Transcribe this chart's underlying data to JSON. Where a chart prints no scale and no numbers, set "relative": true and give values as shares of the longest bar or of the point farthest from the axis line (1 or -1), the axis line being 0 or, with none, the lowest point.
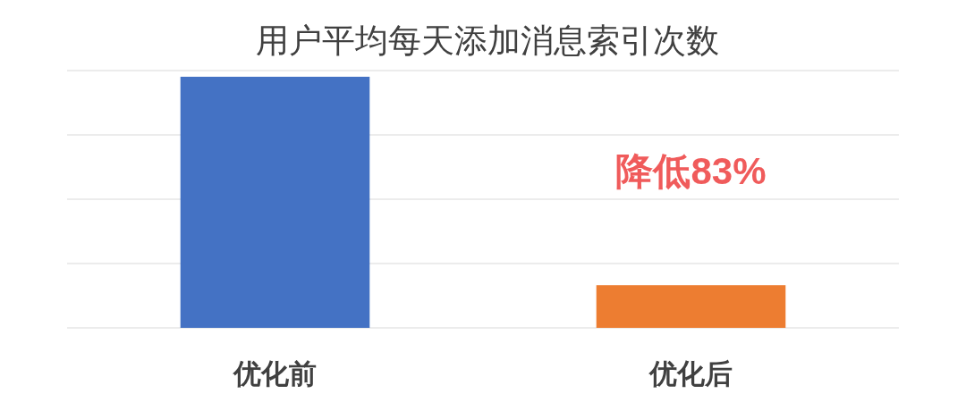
{
  "chart_data": {
    "type": "bar",
    "title": "用户平均每天添加消息索引次数",
    "categories": [
      "优化前",
      "优化后"
    ],
    "values": [
      1,
      0.17
    ],
    "colors": [
      "#4472c4",
      "#ed7d31"
    ],
    "relative": true,
    "grid": true,
    "annotations": [
      "降低83%"
    ]
  }
}
